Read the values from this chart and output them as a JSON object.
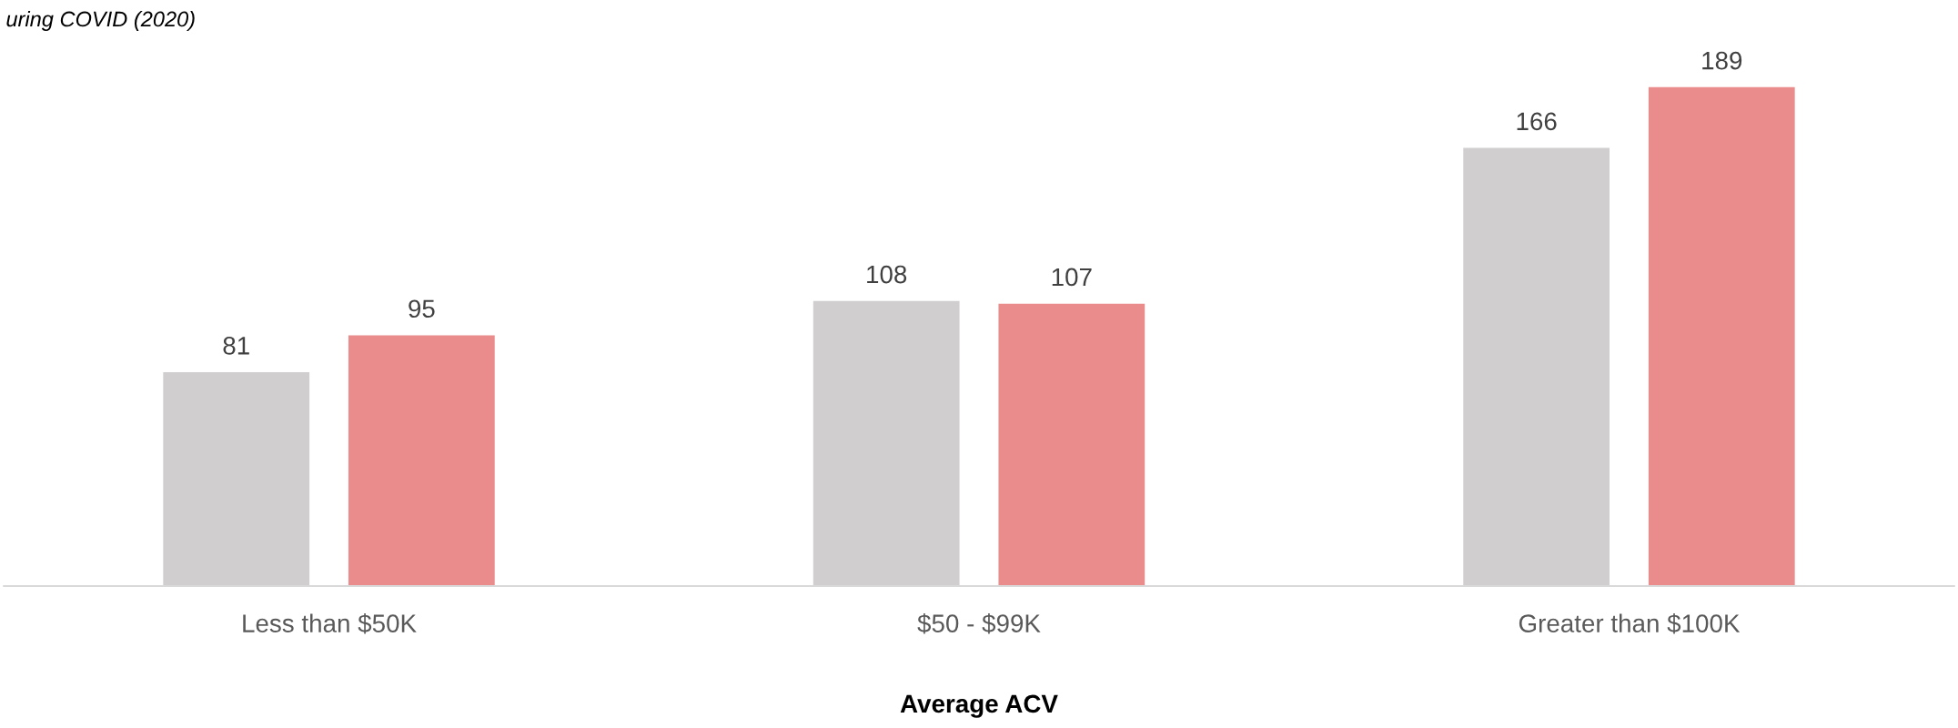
{
  "chart_data": {
    "type": "bar",
    "title": "uring COVID (2020)",
    "xlabel": "Average ACV",
    "categories": [
      "Less than $50K",
      "$50 - $99K",
      "Greater than $100K"
    ],
    "series": [
      {
        "color": "#d0cecf",
        "values": [
          81,
          108,
          166
        ]
      },
      {
        "color": "#ea8c8b",
        "values": [
          95,
          107,
          189
        ]
      }
    ],
    "data_labels": true,
    "grid": false,
    "legend": false
  }
}
